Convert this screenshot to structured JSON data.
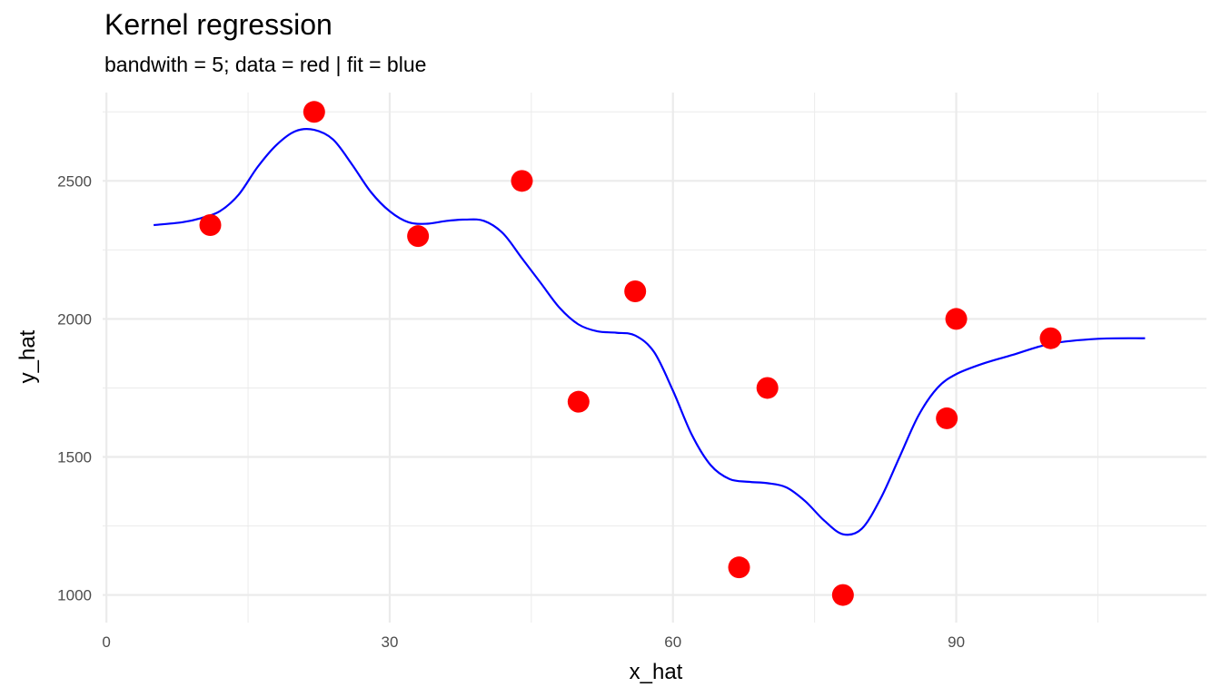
{
  "chart_data": {
    "type": "scatter",
    "title": "Kernel regression",
    "subtitle": "bandwith = 5; data = red | fit = blue",
    "xlabel": "x_hat",
    "ylabel": "y_hat",
    "xlim": [
      -0.4,
      116.5
    ],
    "ylim": [
      900,
      2820
    ],
    "x_ticks": [
      0,
      30,
      60,
      90
    ],
    "x_tick_labels": [
      "0",
      "30",
      "60",
      "90"
    ],
    "y_ticks": [
      1000,
      1500,
      2000,
      2500
    ],
    "y_tick_labels": [
      "1000",
      "1500",
      "2000",
      "2500"
    ],
    "grid": true,
    "colors": {
      "data": "#ff0000",
      "fit": "#0000ff",
      "grid": "#ebebeb"
    },
    "series": [
      {
        "kind": "points",
        "x": [
          11,
          22,
          33,
          44,
          50,
          56,
          67,
          70,
          78,
          89,
          90,
          100
        ],
        "y": [
          2340,
          2750,
          2300,
          2500,
          1700,
          2100,
          1100,
          1750,
          1000,
          1640,
          2000,
          1930
        ]
      },
      {
        "kind": "line",
        "x": [
          5,
          8,
          10,
          12,
          14,
          16,
          18,
          20,
          22,
          24,
          26,
          28,
          30,
          32,
          34,
          36,
          38,
          40,
          42,
          44,
          46,
          48,
          50,
          52,
          54,
          56,
          58,
          60,
          62,
          64,
          66,
          68,
          70,
          72,
          74,
          76,
          78,
          80,
          82,
          84,
          86,
          88,
          90,
          93,
          96,
          100,
          105,
          110
        ],
        "y": [
          2340,
          2350,
          2365,
          2390,
          2450,
          2550,
          2630,
          2680,
          2685,
          2650,
          2560,
          2460,
          2390,
          2350,
          2345,
          2355,
          2360,
          2355,
          2310,
          2220,
          2130,
          2040,
          1980,
          1955,
          1950,
          1940,
          1880,
          1740,
          1580,
          1470,
          1420,
          1410,
          1405,
          1390,
          1340,
          1270,
          1220,
          1240,
          1350,
          1500,
          1650,
          1750,
          1800,
          1840,
          1870,
          1910,
          1928,
          1930
        ]
      }
    ]
  }
}
